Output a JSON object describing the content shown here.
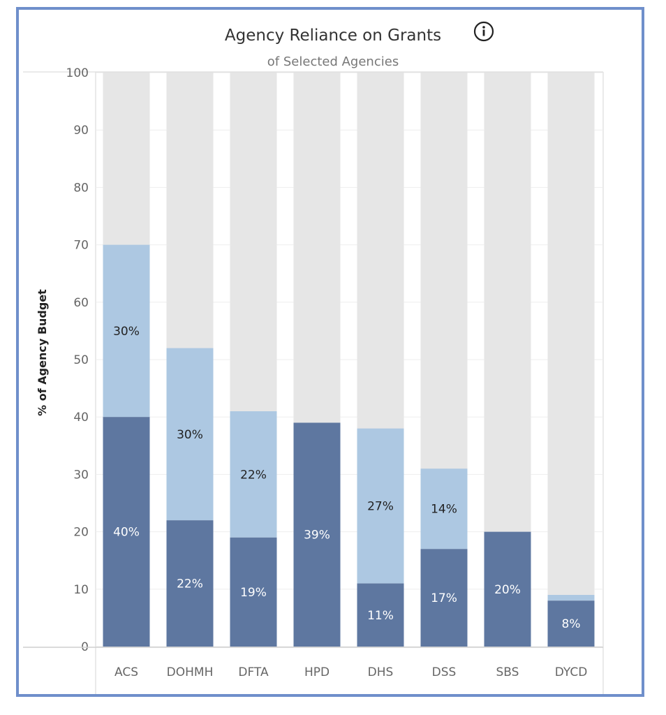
{
  "chart_data": {
    "type": "bar",
    "title": "Agency Reliance on Grants",
    "subtitle": "of Selected Agencies",
    "ylabel": "% of Agency Budget",
    "xlabel": "",
    "ylim": [
      0,
      100
    ],
    "yticks": [
      "0",
      "10",
      "20",
      "30",
      "40",
      "50",
      "60",
      "70",
      "80",
      "90",
      "100"
    ],
    "categories": [
      "ACS",
      "DOHMH",
      "DFTA",
      "HPD",
      "DHS",
      "DSS",
      "SBS",
      "DYCD"
    ],
    "stacked": true,
    "series": [
      {
        "values": [
          40,
          22,
          19,
          39,
          11,
          17,
          20,
          8
        ],
        "labels": [
          "40%",
          "22%",
          "19%",
          "39%",
          "11%",
          "17%",
          "20%",
          "8%"
        ],
        "color": "#5e77a0"
      },
      {
        "values": [
          30,
          30,
          22,
          0,
          27,
          14,
          0,
          1
        ],
        "labels": [
          "30%",
          "30%",
          "22%",
          "",
          "27%",
          "14%",
          "",
          ""
        ],
        "color": "#adc8e2"
      }
    ],
    "background_bar_value": 100,
    "background_color": "#e6e6e6",
    "grid": true,
    "legend": "none"
  },
  "colors": {
    "frame": "#6f8fcb",
    "dark": "#5e77a0",
    "light": "#adc8e2",
    "track": "#e6e6e6"
  },
  "icons": {
    "info": "info-circle-icon"
  }
}
